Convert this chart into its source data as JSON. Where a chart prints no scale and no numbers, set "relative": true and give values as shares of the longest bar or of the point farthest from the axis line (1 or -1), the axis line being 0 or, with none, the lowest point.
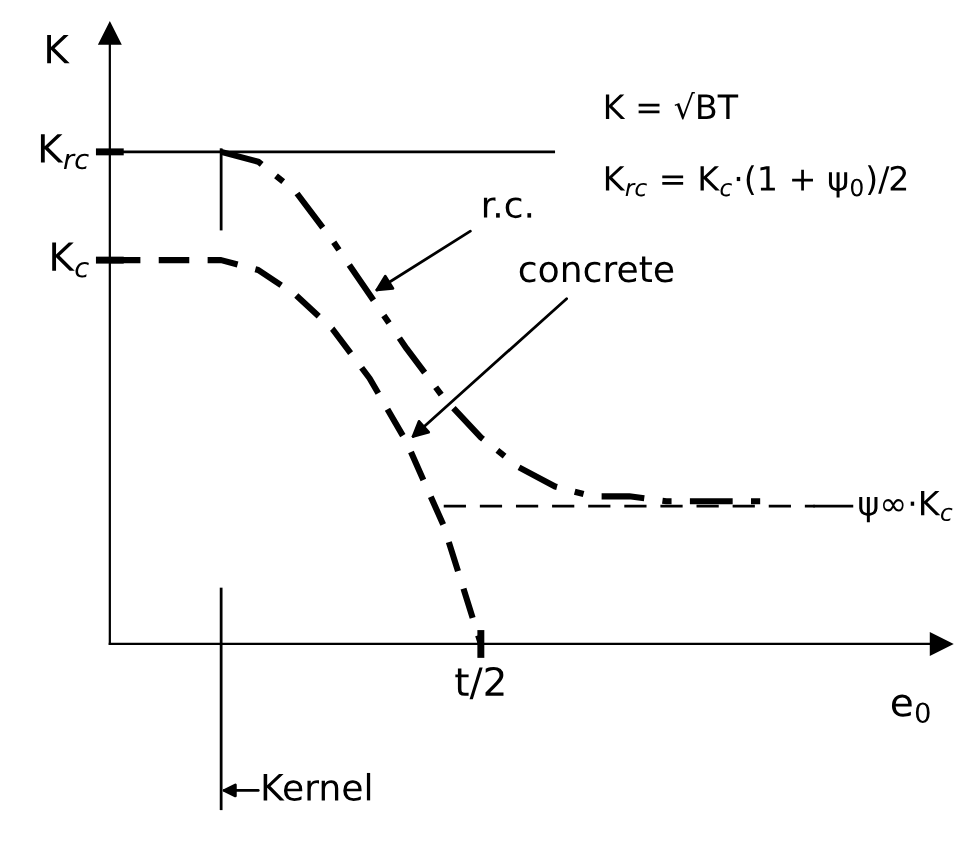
{
  "chart_data": {
    "type": "line",
    "relative": true,
    "xlabel": "e$_{0}$",
    "ylabel": "K",
    "categories": [
      null,
      null,
      null,
      null,
      null,
      null,
      null,
      null,
      null,
      null,
      null,
      null,
      null,
      null,
      null,
      null,
      null,
      null,
      null,
      null,
      null,
      null,
      null
    ],
    "legend": false,
    "marker": "none",
    "series": [
      {
        "color": "#000000",
        "line_style": "dashed",
        "values": [
          0.78,
          0.78,
          0.78,
          0.78,
          0.76,
          0.71,
          0.64,
          0.54,
          0.41,
          0.24,
          0,
          null,
          null,
          null,
          null,
          null,
          null,
          null,
          null,
          null,
          null,
          null,
          null
        ]
      },
      {
        "color": "#000000",
        "line_style": "dashdot",
        "values": [
          null,
          null,
          null,
          1.0,
          0.98,
          0.92,
          0.82,
          0.71,
          0.6,
          0.5,
          0.42,
          0.36,
          0.32,
          0.3,
          0.3,
          0.29,
          0.29,
          0.29,
          0.29,
          null,
          null,
          null,
          null
        ]
      },
      {
        "color": "#000000",
        "line_style": "solid",
        "values": [
          1,
          1,
          1,
          1,
          1,
          1,
          1,
          1,
          1,
          1,
          1,
          1,
          1,
          null,
          null,
          null,
          null,
          null,
          null,
          null,
          null,
          null,
          null
        ]
      },
      {
        "color": "#000000",
        "line_style": "loosedash",
        "values": [
          null,
          null,
          null,
          null,
          null,
          null,
          null,
          null,
          null,
          0.28,
          0.28,
          0.28,
          0.28,
          0.28,
          0.28,
          0.28,
          0.28,
          0.28,
          0.28,
          0.28,
          null,
          null,
          null
        ]
      }
    ],
    "annotations": [
      "r.c.",
      "concrete",
      "ψ∞·K$_{c}$",
      "Kernel",
      "K$_{rc}$",
      "K$_{c}$",
      "t/2",
      "K = √BT",
      "K$_{rc}$ = K$_{c}$·(1 + ψ$_{0}$)/2"
    ]
  }
}
